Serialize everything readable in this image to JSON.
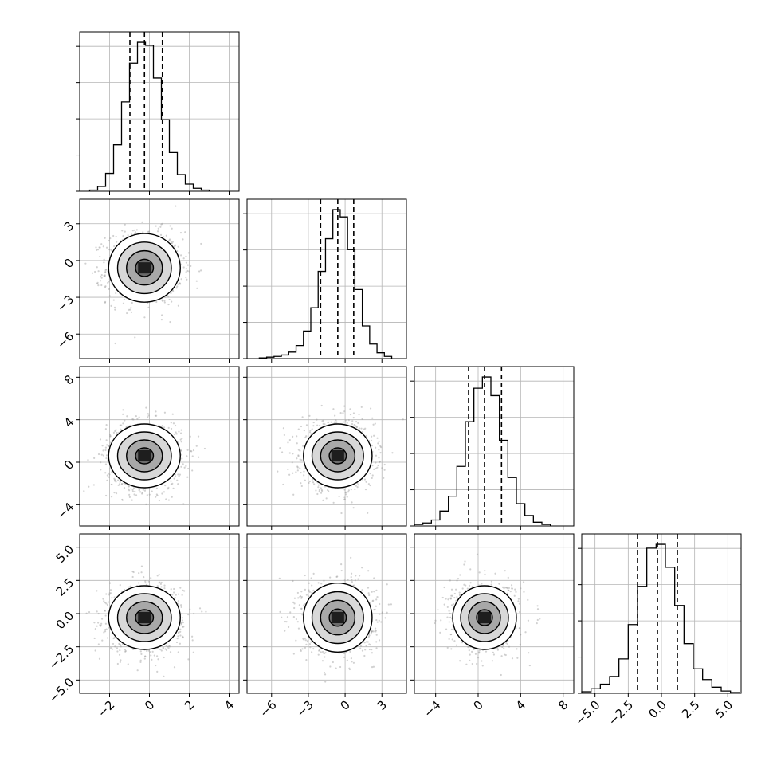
{
  "chart_data": {
    "type": "corner",
    "title": "",
    "grid": true,
    "contour_levels": 4,
    "params": [
      {
        "xlim": [
          -3.5,
          4.5
        ],
        "ticks": [
          -2,
          0,
          2,
          4
        ],
        "tick_labels": [
          "−2",
          "0",
          "2",
          "4"
        ],
        "quantiles": [
          -0.98,
          -0.25,
          0.65
        ],
        "hist_edges": [
          -3.0,
          -2.6,
          -2.2,
          -1.8,
          -1.4,
          -1.0,
          -0.6,
          -0.2,
          0.2,
          0.6,
          1.0,
          1.4,
          1.8,
          2.2,
          2.6,
          3.0
        ],
        "hist_counts": [
          2,
          8,
          30,
          78,
          150,
          215,
          250,
          245,
          190,
          120,
          65,
          28,
          12,
          5,
          2
        ]
      },
      {
        "xlim": [
          -8.0,
          5.0
        ],
        "ticks": [
          -6,
          -3,
          0,
          3
        ],
        "tick_labels": [
          "−6",
          "−3",
          "0",
          "3"
        ],
        "quantiles": [
          -2.0,
          -0.6,
          0.7
        ],
        "hist_edges": [
          -7.0,
          -6.4,
          -5.8,
          -5.2,
          -4.6,
          -4.0,
          -3.4,
          -2.8,
          -2.2,
          -1.6,
          -1.0,
          -0.4,
          0.2,
          0.8,
          1.4,
          2.0,
          2.6,
          3.2,
          3.8
        ],
        "hist_counts": [
          1,
          2,
          3,
          5,
          9,
          18,
          38,
          70,
          120,
          165,
          205,
          195,
          150,
          95,
          45,
          20,
          8,
          3
        ]
      },
      {
        "xlim": [
          -6.0,
          9.0
        ],
        "ticks": [
          -4,
          0,
          4,
          8
        ],
        "tick_labels": [
          "−4",
          "0",
          "4",
          "8"
        ],
        "quantiles": [
          -0.9,
          0.6,
          2.2
        ],
        "hist_edges": [
          -6.0,
          -5.2,
          -4.4,
          -3.6,
          -2.8,
          -2.0,
          -1.2,
          -0.4,
          0.4,
          1.2,
          2.0,
          2.8,
          3.6,
          4.4,
          5.2,
          6.0,
          6.8
        ],
        "hist_counts": [
          2,
          4,
          8,
          20,
          40,
          80,
          140,
          185,
          200,
          175,
          115,
          65,
          30,
          14,
          5,
          2
        ]
      },
      {
        "xlim": [
          -6.0,
          6.0
        ],
        "ticks": [
          -5.0,
          -2.5,
          0.0,
          2.5,
          5.0
        ],
        "tick_labels": [
          "−5.0",
          "−2.5",
          "0.0",
          "2.5",
          "5.0"
        ],
        "quantiles": [
          -1.8,
          -0.3,
          1.2
        ],
        "hist_edges": [
          -6.0,
          -5.3,
          -4.6,
          -3.9,
          -3.2,
          -2.5,
          -1.8,
          -1.1,
          -0.4,
          0.3,
          1.0,
          1.7,
          2.4,
          3.1,
          3.8,
          4.5,
          5.2,
          5.9
        ],
        "hist_counts": [
          2,
          6,
          12,
          22,
          45,
          90,
          140,
          190,
          195,
          165,
          115,
          65,
          32,
          18,
          8,
          3,
          1
        ]
      }
    ],
    "rows_ylim": {
      "1": [
        -8.0,
        5.0
      ],
      "2": [
        -6.0,
        9.0
      ],
      "3": [
        -6.0,
        6.0
      ]
    },
    "row_ticks": {
      "1": {
        "ticks": [
          3,
          0,
          -3,
          -6
        ],
        "labels": [
          "3",
          "0",
          "−3",
          "−6"
        ]
      },
      "2": {
        "ticks": [
          8,
          4,
          0,
          -4
        ],
        "labels": [
          "8",
          "4",
          "0",
          "−4"
        ]
      },
      "3": {
        "ticks": [
          5.0,
          2.5,
          0.0,
          -2.5,
          -5.0
        ],
        "labels": [
          "5.0",
          "2.5",
          "0.0",
          "−2.5",
          "−5.0"
        ]
      }
    },
    "pair_cells": [
      {
        "row": 1,
        "col": 0,
        "center": [
          -0.25,
          -0.6
        ],
        "sigma": [
          0.9,
          1.4
        ]
      },
      {
        "row": 2,
        "col": 0,
        "center": [
          -0.25,
          0.6
        ],
        "sigma": [
          0.9,
          1.5
        ]
      },
      {
        "row": 2,
        "col": 1,
        "center": [
          -0.6,
          0.6
        ],
        "sigma": [
          1.4,
          1.5
        ]
      },
      {
        "row": 3,
        "col": 0,
        "center": [
          -0.25,
          -0.3
        ],
        "sigma": [
          0.9,
          1.2
        ]
      },
      {
        "row": 3,
        "col": 1,
        "center": [
          -0.6,
          -0.3
        ],
        "sigma": [
          1.4,
          1.3
        ]
      },
      {
        "row": 3,
        "col": 2,
        "center": [
          0.6,
          -0.3
        ],
        "sigma": [
          1.5,
          1.2
        ]
      }
    ]
  }
}
